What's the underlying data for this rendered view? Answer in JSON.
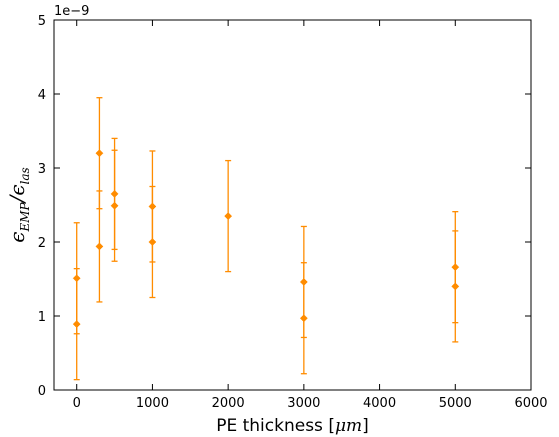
{
  "chart_data": {
    "type": "scatter",
    "title": "",
    "xlabel": {
      "prefix": "PE thickness [",
      "math": "μm",
      "suffix": "]"
    },
    "ylabel": {
      "num_main": "ϵ",
      "num_sub": "EMP",
      "slash": "/",
      "den_main": "ϵ",
      "den_sub": "las"
    },
    "y_offset_label": "1e−9",
    "xlim": [
      -300,
      6000
    ],
    "ylim": [
      0,
      5
    ],
    "x_ticks": [
      0,
      1000,
      2000,
      3000,
      4000,
      5000,
      6000
    ],
    "x_tick_labels": [
      "0",
      "1000",
      "2000",
      "3000",
      "4000",
      "5000",
      "6000"
    ],
    "y_ticks": [
      0,
      1,
      2,
      3,
      4,
      5
    ],
    "y_tick_labels": [
      "0",
      "1",
      "2",
      "3",
      "4",
      "5"
    ],
    "grid": false,
    "legend": "none",
    "color": "#ff8c00",
    "series": [
      {
        "points": [
          {
            "x": 0,
            "y": 1.51,
            "err": 0.75
          },
          {
            "x": 0,
            "y": 0.89,
            "err": 0.75
          },
          {
            "x": 300,
            "y": 3.2,
            "err": 0.75
          },
          {
            "x": 300,
            "y": 1.94,
            "err": 0.75
          },
          {
            "x": 500,
            "y": 2.65,
            "err": 0.75
          },
          {
            "x": 500,
            "y": 2.49,
            "err": 0.75
          },
          {
            "x": 1000,
            "y": 2.48,
            "err": 0.75
          },
          {
            "x": 1000,
            "y": 2.0,
            "err": 0.75
          },
          {
            "x": 2000,
            "y": 2.35,
            "err": 0.75
          },
          {
            "x": 3000,
            "y": 1.46,
            "err": 0.75
          },
          {
            "x": 3000,
            "y": 0.97,
            "err": 0.75
          },
          {
            "x": 5000,
            "y": 1.66,
            "err": 0.75
          },
          {
            "x": 5000,
            "y": 1.4,
            "err": 0.75
          }
        ]
      }
    ]
  }
}
